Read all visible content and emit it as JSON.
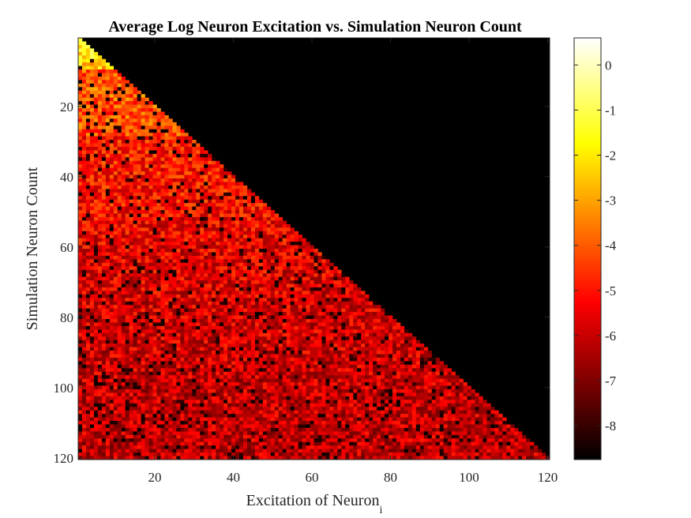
{
  "chart_data": {
    "type": "heatmap",
    "title": "Average Log Neuron Excitation vs. Simulation Neuron Count",
    "xlabel": "Excitation of Neuron",
    "xlabel_subscript": "i",
    "ylabel": "Simulation Neuron Count",
    "xlim": [
      0.5,
      120.5
    ],
    "ylim": [
      0.5,
      120.5
    ],
    "y_reversed": true,
    "x_ticks": [
      "20",
      "40",
      "60",
      "80",
      "100",
      "120"
    ],
    "y_ticks": [
      "20",
      "40",
      "60",
      "80",
      "100",
      "120"
    ],
    "grid": false,
    "colormap": "hot",
    "colorbar": {
      "range": [
        -8.75,
        0.6
      ],
      "ticks": [
        "0",
        "-1",
        "-2",
        "-3",
        "-4",
        "-5",
        "-6",
        "-7",
        "-8"
      ],
      "placement": "right"
    },
    "background_value": -8.75,
    "structure": "lower-triangular: cell (row n, column i) defined only for i <= n; cells with i > n are empty (black)",
    "row_mean_profile": {
      "n": [
        1,
        5,
        9,
        10,
        15,
        20,
        28,
        29,
        40,
        60,
        80,
        100,
        120
      ],
      "mean": [
        -1.5,
        -1.9,
        -2.4,
        -4.2,
        -4.0,
        -4.1,
        -4.2,
        -4.9,
        -5.0,
        -5.5,
        -5.8,
        -6.0,
        -6.1
      ]
    },
    "noise_spread": 1.2,
    "dark_cell_fraction": 0.1
  }
}
